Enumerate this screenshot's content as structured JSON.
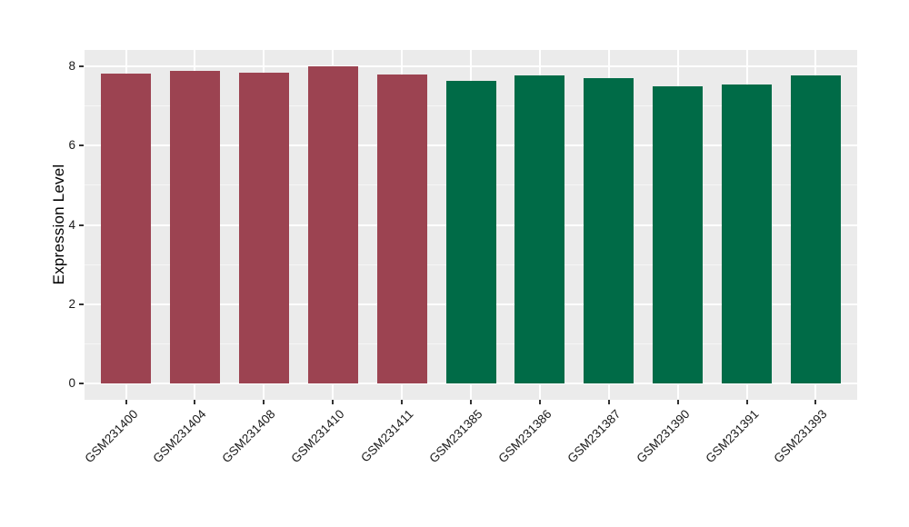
{
  "chart_data": {
    "type": "bar",
    "title": "",
    "xlabel": "",
    "ylabel": "Expression Level",
    "categories": [
      "GSM231400",
      "GSM231404",
      "GSM231408",
      "GSM231410",
      "GSM231411",
      "GSM231385",
      "GSM231386",
      "GSM231387",
      "GSM231390",
      "GSM231391",
      "GSM231393"
    ],
    "values": [
      7.8,
      7.88,
      7.82,
      7.99,
      7.78,
      7.63,
      7.77,
      7.69,
      7.48,
      7.54,
      7.77
    ],
    "bar_colors": [
      "#9c4351",
      "#9c4351",
      "#9c4351",
      "#9c4351",
      "#9c4351",
      "#006b47",
      "#006b47",
      "#006b47",
      "#006b47",
      "#006b47",
      "#006b47"
    ],
    "ylim": [
      0,
      8
    ],
    "yticks": [
      0,
      2,
      4,
      6,
      8
    ],
    "grid_every": 1,
    "grid": "on",
    "legend": "none",
    "x_label_rotation_deg": 45,
    "panel_bg": "#ebebeb",
    "grid_major_color": "#ffffff",
    "grid_minor_color": "#f6f6f6",
    "tick_color": "#333333",
    "text_color": "#1a1a1a"
  }
}
